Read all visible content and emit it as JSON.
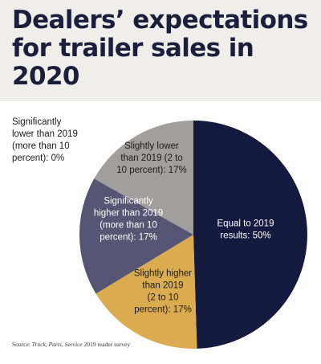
{
  "title": "Dealers’ expectations for trailer sales in 2020",
  "source": {
    "prefix": "Source: ",
    "italic1": "Truck",
    "sep1": ", ",
    "italic2": "Parts",
    "sep2": ", ",
    "italic3": "Service",
    "suffix": " 2019 reader survey"
  },
  "colors": {
    "equal": "#141a3e",
    "higher_slight": "#dbab50",
    "higher_significant": "#565573",
    "lower_slight": "#a09f9e",
    "header_bg": "#efeeeb",
    "title_text": "#1b1f3b"
  },
  "chart_data": {
    "type": "pie",
    "title": "Dealers’ expectations for trailer sales in 2020",
    "slices": [
      {
        "key": "equal",
        "value": 50,
        "color": "#141a3e",
        "text_color": "#ffffff",
        "label_lines": [
          "Equal to 2019",
          "results: 50%"
        ]
      },
      {
        "key": "higher_slight",
        "value": 17,
        "color": "#dbab50",
        "text_color": "#1c1c1c",
        "label_lines": [
          "Slightly higher",
          "than 2019",
          "(2 to 10",
          "percent): 17%"
        ]
      },
      {
        "key": "higher_significant",
        "value": 17,
        "color": "#565573",
        "text_color": "#ffffff",
        "label_lines": [
          "Significantly",
          "higher than 2019",
          "(more than 10",
          "percent): 17%"
        ]
      },
      {
        "key": "lower_slight",
        "value": 17,
        "color": "#a09f9e",
        "text_color": "#1c1c1c",
        "label_lines": [
          "Slightly lower",
          "than 2019 (2 to",
          "10 percent): 17%"
        ]
      },
      {
        "key": "lower_significant",
        "value": 0,
        "color": "#cccccc",
        "text_color": "#1c1c1c",
        "label_lines": [
          "Significantly",
          "lower than 2019",
          "(more than 10",
          "percent): 0%"
        ]
      }
    ]
  }
}
